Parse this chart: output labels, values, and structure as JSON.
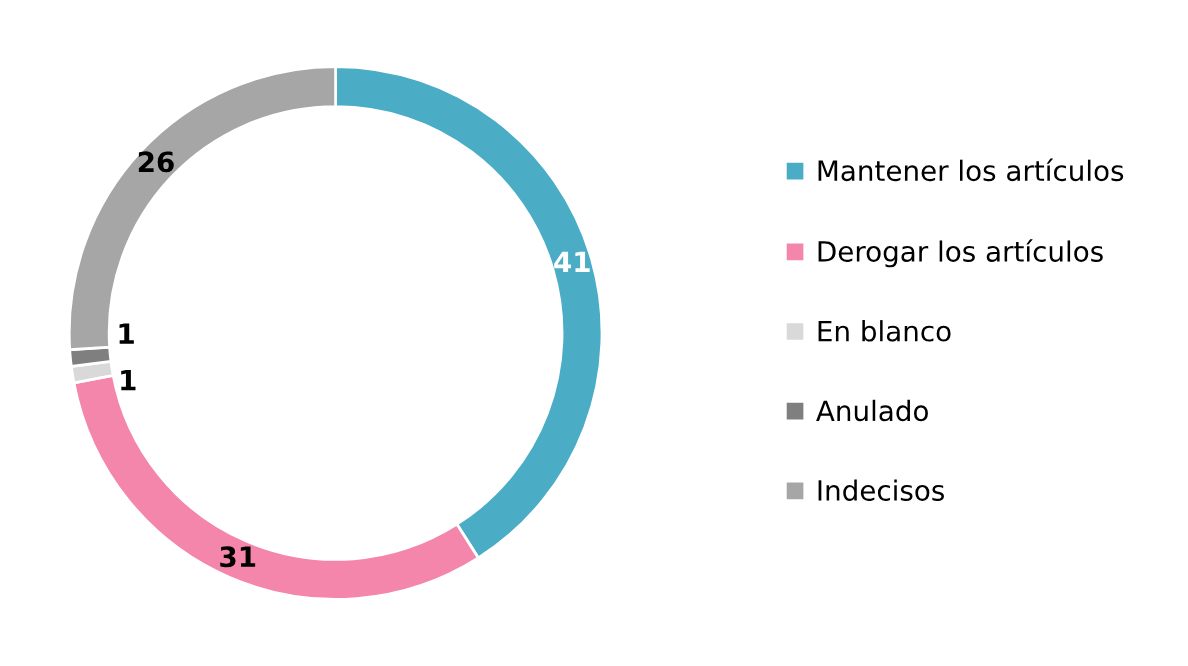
{
  "chart_data": {
    "type": "donut",
    "categories": [
      "Mantener los artículos",
      "Derogar los artículos",
      "En blanco",
      "Anulado",
      "Indecisos"
    ],
    "values": [
      41,
      31,
      1,
      1,
      26
    ],
    "colors": [
      "#4bacc6",
      "#f386aa",
      "#d9d9d9",
      "#7f7f7f",
      "#a6a6a6"
    ],
    "data_labels": true,
    "legend": "right"
  }
}
